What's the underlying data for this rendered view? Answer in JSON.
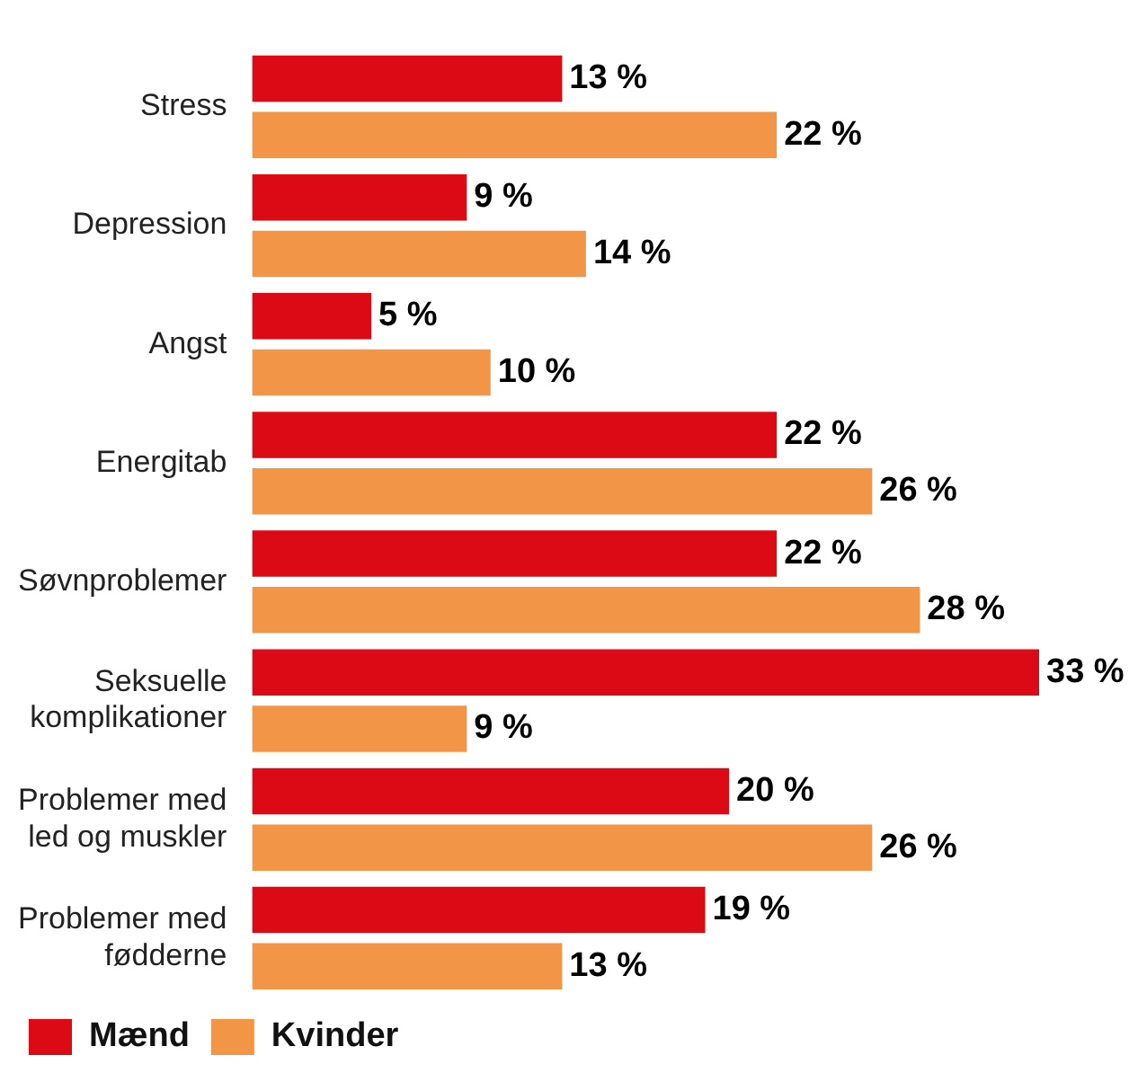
{
  "chart_data": {
    "type": "bar",
    "orientation": "horizontal",
    "categories": [
      "Stress",
      "Depression",
      "Angst",
      "Energitab",
      "Søvnproblemer",
      "Seksuelle komplikationer",
      "Problemer med led og muskler",
      "Problemer med fødderne"
    ],
    "series": [
      {
        "name": "Mænd",
        "color": "#dc0a14",
        "values": [
          13,
          9,
          5,
          22,
          22,
          33,
          20,
          19
        ],
        "value_labels": [
          "13 %",
          "9 %",
          "5 %",
          "22 %",
          "22 %",
          "33 %",
          "20 %",
          "19 %"
        ]
      },
      {
        "name": "Kvinder",
        "color": "#f39547",
        "values": [
          22,
          14,
          10,
          26,
          28,
          9,
          26,
          13
        ],
        "value_labels": [
          "22 %",
          "14 %",
          "10 %",
          "26 %",
          "28 %",
          "9 %",
          "26 %",
          "13 %"
        ]
      }
    ],
    "xlim": [
      0,
      33
    ],
    "tick_labels": "y",
    "grid": false,
    "legend": "bottom left"
  }
}
